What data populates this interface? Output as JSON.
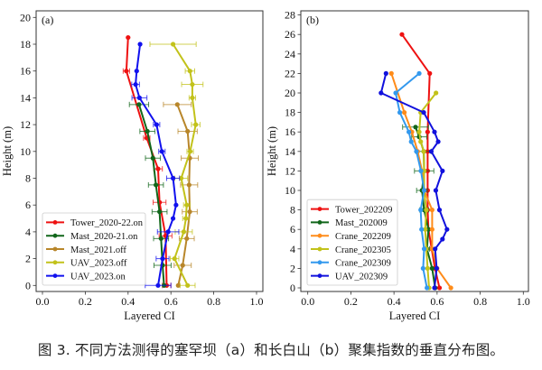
{
  "caption": "图 3. 不同方法测得的塞罕坝（a）和长白山（b）聚集指数的垂直分布图。",
  "chart_data": [
    {
      "type": "line",
      "panel_label": "(a)",
      "xlabel": "Layered CI",
      "ylabel": "Height (m)",
      "xlim": [
        0.0,
        1.0
      ],
      "ylim": [
        -0.5,
        20.2
      ],
      "xticks": [
        "0.0",
        "0.2",
        "0.4",
        "0.6",
        "0.8",
        "1.0"
      ],
      "yticks": [
        "0",
        "2",
        "4",
        "6",
        "8",
        "10",
        "12",
        "14",
        "16",
        "18",
        "20"
      ],
      "grid": false,
      "legend_position": "lower-left",
      "series": [
        {
          "name": "Tower_2020-22.on",
          "color": "#ee1111",
          "points": [
            [
              0.58,
              0
            ],
            [
              0.575,
              3.7
            ],
            [
              0.547,
              6.2
            ],
            [
              0.54,
              8.7
            ],
            [
              0.487,
              11
            ],
            [
              0.392,
              16
            ],
            [
              0.4,
              18.5
            ]
          ],
          "errors": [
            0.02,
            0.03,
            0.03,
            0.02,
            0.015,
            0.015,
            0
          ]
        },
        {
          "name": "Mast_2020-21.on",
          "color": "#11661a",
          "points": [
            [
              0.568,
              0
            ],
            [
              0.561,
              1.5
            ],
            [
              0.554,
              3.5
            ],
            [
              0.547,
              5.5
            ],
            [
              0.53,
              7.5
            ],
            [
              0.516,
              9.5
            ],
            [
              0.49,
              11.5
            ],
            [
              0.451,
              13.5
            ]
          ],
          "errors": [
            0.0,
            0.04,
            0.035,
            0.035,
            0.035,
            0.035,
            0.035,
            0.045
          ]
        },
        {
          "name": "Mast_2021.off",
          "color": "#b8862a",
          "points": [
            [
              0.634,
              0
            ],
            [
              0.655,
              1.5
            ],
            [
              0.674,
              3.5
            ],
            [
              0.688,
              5.5
            ],
            [
              0.685,
              7.5
            ],
            [
              0.688,
              9.5
            ],
            [
              0.678,
              11.5
            ],
            [
              0.63,
              13.5
            ]
          ],
          "errors": [
            0.0,
            0.04,
            0.035,
            0.035,
            0.04,
            0.04,
            0.045,
            0.065
          ]
        },
        {
          "name": "UAV_2023.off",
          "color": "#c2c21a",
          "points": [
            [
              0.678,
              0
            ],
            [
              0.617,
              2
            ],
            [
              0.66,
              4
            ],
            [
              0.67,
              5
            ],
            [
              0.674,
              6
            ],
            [
              0.648,
              8
            ],
            [
              0.69,
              10
            ],
            [
              0.716,
              12
            ],
            [
              0.7,
              14
            ],
            [
              0.7,
              15
            ],
            [
              0.689,
              16
            ],
            [
              0.61,
              18
            ]
          ],
          "errors": [
            0.035,
            0.02,
            0.04,
            0.015,
            0.015,
            0.03,
            0.015,
            0.02,
            0.015,
            0.05,
            0.022,
            0.108
          ]
        },
        {
          "name": "UAV_2023.on",
          "color": "#1111ee",
          "points": [
            [
              0.54,
              0
            ],
            [
              0.561,
              2
            ],
            [
              0.587,
              4
            ],
            [
              0.61,
              5
            ],
            [
              0.624,
              6
            ],
            [
              0.61,
              8
            ],
            [
              0.558,
              10
            ],
            [
              0.533,
              12
            ],
            [
              0.453,
              14
            ],
            [
              0.435,
              15
            ],
            [
              0.44,
              16
            ],
            [
              0.456,
              18
            ]
          ],
          "errors": [
            0.06,
            0.03,
            0.05,
            0.0,
            0.0,
            0.03,
            0.015,
            0.015,
            0.035,
            0.018,
            0.0,
            0.0
          ]
        }
      ]
    },
    {
      "type": "line",
      "panel_label": "(b)",
      "xlabel": "Layered CI",
      "ylabel": "Height (m)",
      "xlim": [
        0.0,
        1.0
      ],
      "ylim": [
        -0.5,
        28.2
      ],
      "xticks": [
        "0.0",
        "0.2",
        "0.4",
        "0.6",
        "0.8",
        "1.0"
      ],
      "yticks": [
        "0",
        "2",
        "4",
        "6",
        "8",
        "10",
        "12",
        "14",
        "16",
        "18",
        "20",
        "22",
        "24",
        "26",
        "28"
      ],
      "grid": false,
      "legend_position": "lower-left",
      "series": [
        {
          "name": "Tower_202209",
          "color": "#ee1111",
          "points": [
            [
              0.611,
              0
            ],
            [
              0.59,
              2
            ],
            [
              0.575,
              4
            ],
            [
              0.56,
              6
            ],
            [
              0.556,
              8
            ],
            [
              0.556,
              10
            ],
            [
              0.556,
              12
            ],
            [
              0.556,
              14
            ],
            [
              0.556,
              16
            ],
            [
              0.566,
              22
            ],
            [
              0.437,
              26
            ]
          ],
          "errors": []
        },
        {
          "name": "Mast_202009",
          "color": "#11661a",
          "points": [
            [
              0.591,
              0
            ],
            [
              0.577,
              2
            ],
            [
              0.553,
              4
            ],
            [
              0.56,
              6
            ],
            [
              0.54,
              8
            ],
            [
              0.53,
              10
            ],
            [
              0.54,
              12
            ],
            [
              0.538,
              14
            ],
            [
              0.517,
              15.5
            ],
            [
              0.5,
              16.5
            ]
          ],
          "errors": [
            0.0,
            0.0,
            0.012,
            0.0,
            0.02,
            0.025,
            0.045,
            0.035,
            0.035,
            0.06
          ]
        },
        {
          "name": "Crane_202209",
          "color": "#ff8c1a",
          "points": [
            [
              0.664,
              0
            ],
            [
              0.6,
              2
            ],
            [
              0.577,
              4
            ],
            [
              0.577,
              6
            ],
            [
              0.577,
              8
            ],
            [
              0.54,
              10
            ],
            [
              0.53,
              12
            ],
            [
              0.51,
              14
            ],
            [
              0.483,
              16
            ],
            [
              0.448,
              18
            ],
            [
              0.388,
              22
            ]
          ],
          "errors": []
        },
        {
          "name": "Crane_202305",
          "color": "#c2c21a",
          "points": [
            [
              0.563,
              0
            ],
            [
              0.556,
              2
            ],
            [
              0.55,
              4
            ],
            [
              0.545,
              6
            ],
            [
              0.55,
              8
            ],
            [
              0.54,
              10
            ],
            [
              0.54,
              12
            ],
            [
              0.538,
              14
            ],
            [
              0.524,
              15
            ],
            [
              0.517,
              16
            ],
            [
              0.524,
              18
            ],
            [
              0.595,
              20
            ]
          ],
          "errors": []
        },
        {
          "name": "Crane_202309",
          "color": "#3399ee",
          "points": [
            [
              0.553,
              0
            ],
            [
              0.535,
              2
            ],
            [
              0.54,
              4
            ],
            [
              0.528,
              6
            ],
            [
              0.524,
              8
            ],
            [
              0.54,
              10
            ],
            [
              0.525,
              12
            ],
            [
              0.504,
              14
            ],
            [
              0.48,
              15
            ],
            [
              0.469,
              16
            ],
            [
              0.427,
              18
            ],
            [
              0.408,
              20
            ],
            [
              0.517,
              22
            ]
          ],
          "errors": []
        },
        {
          "name": "UAV_202309",
          "color": "#1111dd",
          "points": [
            [
              0.588,
              0
            ],
            [
              0.598,
              2
            ],
            [
              0.591,
              4
            ],
            [
              0.625,
              5
            ],
            [
              0.646,
              6
            ],
            [
              0.611,
              8
            ],
            [
              0.594,
              10
            ],
            [
              0.625,
              12
            ],
            [
              0.573,
              14
            ],
            [
              0.605,
              15
            ],
            [
              0.588,
              16
            ],
            [
              0.538,
              18
            ],
            [
              0.34,
              20
            ],
            [
              0.363,
              22
            ]
          ],
          "errors": []
        }
      ]
    }
  ]
}
